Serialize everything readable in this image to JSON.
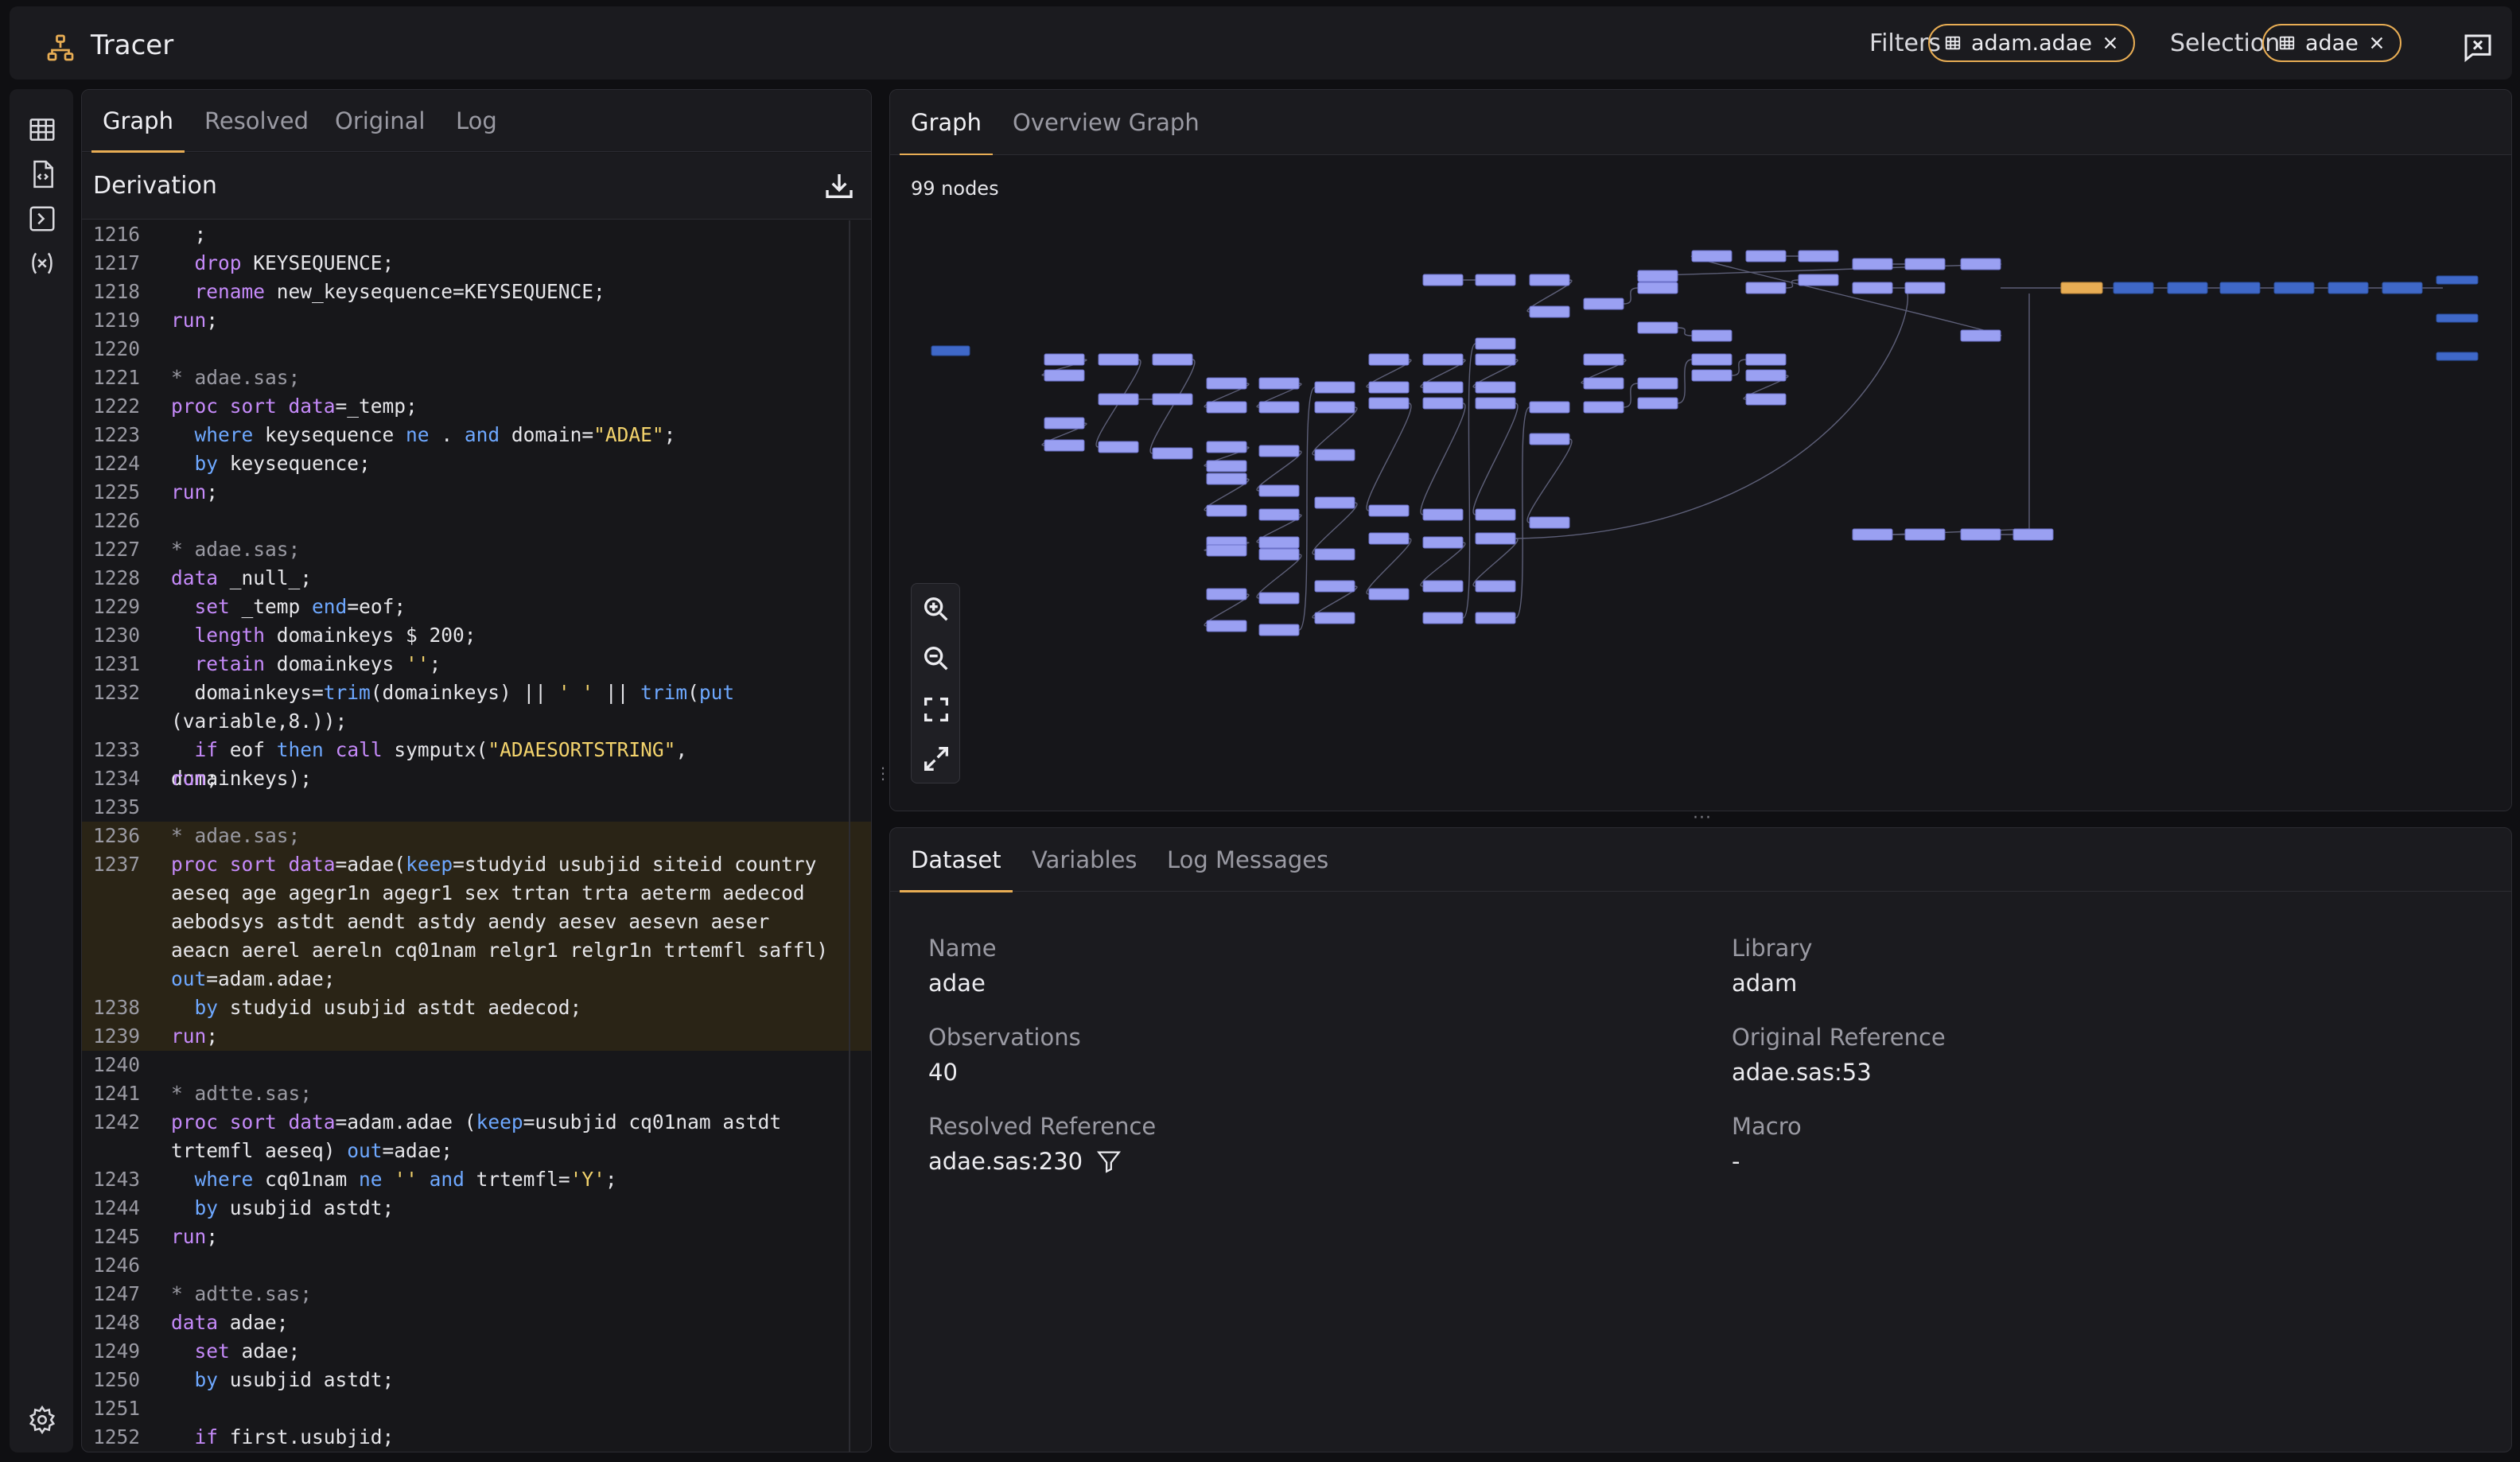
{
  "app": {
    "title": "Tracer",
    "logo_icon": "hierarchy-icon"
  },
  "header": {
    "filters_label": "Filters",
    "filter_chip": {
      "label": "adam.adae",
      "icon": "table-icon",
      "remove_icon": "close-icon"
    },
    "selection_label": "Selection",
    "selection_chip": {
      "label": "adae",
      "icon": "table-icon",
      "remove_icon": "close-icon"
    },
    "feedback_icon": "feedback-icon",
    "accent_color": "#e8ad54"
  },
  "sidebar": {
    "icons": [
      "table-icon",
      "code-file-icon",
      "terminal-icon",
      "variable-icon"
    ],
    "settings_icon": "gear-icon"
  },
  "left_panel": {
    "tabs": [
      {
        "label": "Graph"
      },
      {
        "label": "Resolved"
      },
      {
        "label": "Original"
      },
      {
        "label": "Log"
      }
    ],
    "active_tab": "Graph",
    "section_title": "Derivation",
    "download_icon": "download-icon"
  },
  "code": {
    "lines": [
      {
        "n": "1216",
        "t": "  ;"
      },
      {
        "n": "1217",
        "t": "  drop KEYSEQUENCE;"
      },
      {
        "n": "1218",
        "t": "  rename new_keysequence=KEYSEQUENCE;"
      },
      {
        "n": "1219",
        "t": "run;"
      },
      {
        "n": "1220",
        "t": ""
      },
      {
        "n": "1221",
        "t": "* adae.sas;"
      },
      {
        "n": "1222",
        "t": "proc sort data=_temp;"
      },
      {
        "n": "1223",
        "t": "  where keysequence ne . and domain=\"ADAE\";"
      },
      {
        "n": "1224",
        "t": "  by keysequence;"
      },
      {
        "n": "1225",
        "t": "run;"
      },
      {
        "n": "1226",
        "t": ""
      },
      {
        "n": "1227",
        "t": "* adae.sas;"
      },
      {
        "n": "1228",
        "t": "data _null_;"
      },
      {
        "n": "1229",
        "t": "  set _temp end=eof;"
      },
      {
        "n": "1230",
        "t": "  length domainkeys $ 200;"
      },
      {
        "n": "1231",
        "t": "  retain domainkeys '';"
      },
      {
        "n": "1232",
        "t": "  domainkeys=trim(domainkeys) || ' ' || trim(put\n(variable,8.));"
      },
      {
        "n": "1233",
        "t": "  if eof then call symputx(\"ADAESORTSTRING\", domainkeys);"
      },
      {
        "n": "1234",
        "t": "run;"
      },
      {
        "n": "1235",
        "t": ""
      },
      {
        "n": "1236",
        "t": "* adae.sas;"
      },
      {
        "n": "1237",
        "t": "proc sort data=adae(keep=studyid usubjid siteid country\naeseq age agegr1n agegr1 sex trtan trta aeterm aedecod\naebodsys astdt aendt astdy aendy aesev aesevn aeser\naeacn aerel aereln cq01nam relgr1 relgr1n trtemfl saffl)\nout=adam.adae;"
      },
      {
        "n": "1238",
        "t": "  by studyid usubjid astdt aedecod;"
      },
      {
        "n": "1239",
        "t": "run;"
      },
      {
        "n": "1240",
        "t": ""
      },
      {
        "n": "1241",
        "t": "* adtte.sas;"
      },
      {
        "n": "1242",
        "t": "proc sort data=adam.adae (keep=usubjid cq01nam astdt\ntrtemfl aeseq) out=adae;"
      },
      {
        "n": "1243",
        "t": "  where cq01nam ne '' and trtemfl='Y';"
      },
      {
        "n": "1244",
        "t": "  by usubjid astdt;"
      },
      {
        "n": "1245",
        "t": "run;"
      },
      {
        "n": "1246",
        "t": ""
      },
      {
        "n": "1247",
        "t": "* adtte.sas;"
      },
      {
        "n": "1248",
        "t": "data adae;"
      },
      {
        "n": "1249",
        "t": "  set adae;"
      },
      {
        "n": "1250",
        "t": "  by usubjid astdt;"
      },
      {
        "n": "1251",
        "t": ""
      },
      {
        "n": "1252",
        "t": "  if first.usubjid;"
      }
    ],
    "highlighted_lines": [
      "1236",
      "1237",
      "1238",
      "1239"
    ]
  },
  "graph_panel": {
    "tabs": [
      {
        "label": "Graph"
      },
      {
        "label": "Overview Graph"
      }
    ],
    "active_tab": "Graph",
    "node_count_label": "99 nodes",
    "zoom_icons": [
      "zoom-in-icon",
      "zoom-out-icon",
      "fit-view-icon",
      "expand-icon"
    ]
  },
  "details": {
    "tabs": [
      {
        "label": "Dataset"
      },
      {
        "label": "Variables"
      },
      {
        "label": "Log Messages"
      }
    ],
    "active_tab": "Dataset",
    "fields": {
      "name": {
        "label": "Name",
        "value": "adae"
      },
      "library": {
        "label": "Library",
        "value": "adam"
      },
      "observations": {
        "label": "Observations",
        "value": "40"
      },
      "original_reference": {
        "label": "Original Reference",
        "value": "adae.sas:53"
      },
      "resolved_reference": {
        "label": "Resolved Reference",
        "value": "adae.sas:230",
        "icon": "filter-icon"
      },
      "macro": {
        "label": "Macro",
        "value": "-"
      }
    }
  }
}
